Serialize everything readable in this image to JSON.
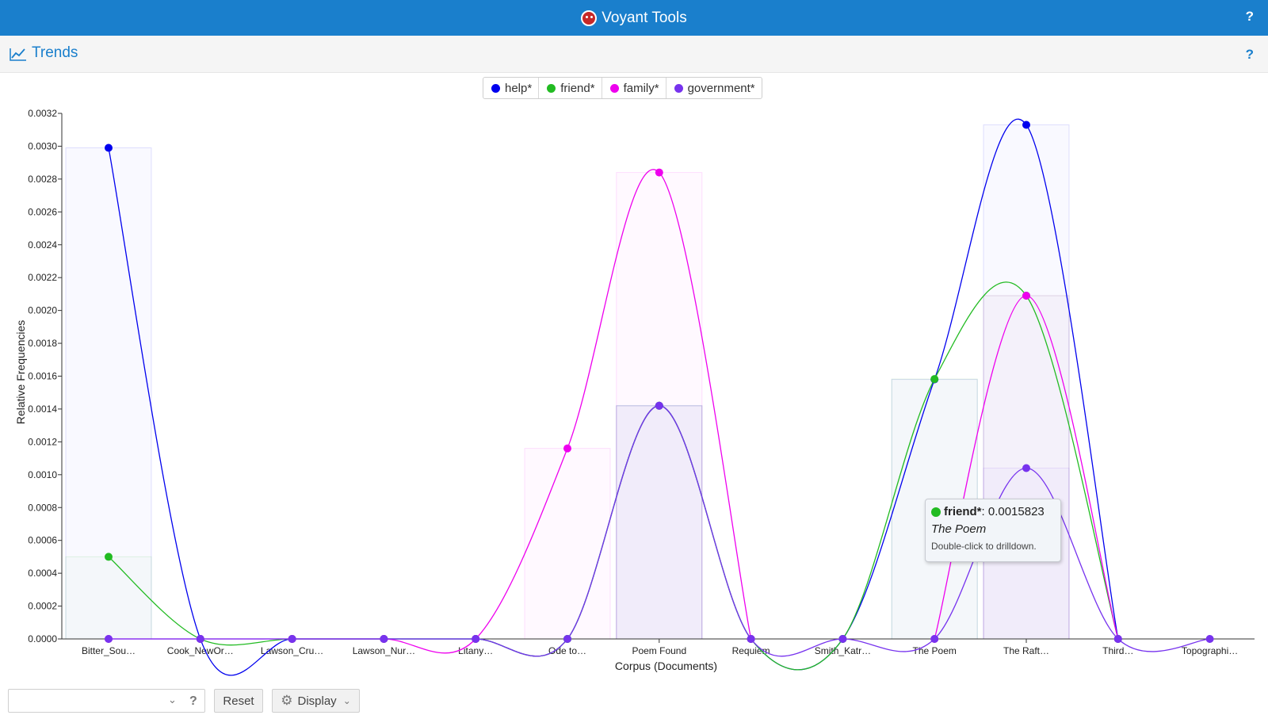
{
  "app": {
    "title": "Voyant Tools",
    "help": "?"
  },
  "panel": {
    "title": "Trends",
    "help": "?"
  },
  "legend": [
    {
      "label": "help*",
      "color": "#0000ee"
    },
    {
      "label": "friend*",
      "color": "#22bb22"
    },
    {
      "label": "family*",
      "color": "#ee00ee"
    },
    {
      "label": "government*",
      "color": "#7733ee"
    }
  ],
  "chart_data": {
    "type": "line",
    "xlabel": "Corpus (Documents)",
    "ylabel": "Relative Frequencies",
    "ylim": [
      0,
      0.0032
    ],
    "yticks": [
      "0.0000",
      "0.0002",
      "0.0004",
      "0.0006",
      "0.0008",
      "0.0010",
      "0.0012",
      "0.0014",
      "0.0016",
      "0.0018",
      "0.0020",
      "0.0022",
      "0.0024",
      "0.0026",
      "0.0028",
      "0.0030",
      "0.0032"
    ],
    "categories": [
      "Bitter_Sou…",
      "Cook_NewOr…",
      "Lawson_Cru…",
      "Lawson_Nur…",
      "Litany…",
      "Ode to…",
      "Poem Found",
      "Requiem",
      "Smith_Katr…",
      "The Poem",
      "The Raft…",
      "Third…",
      "Topographi…"
    ],
    "series": [
      {
        "name": "help*",
        "color": "#0000ee",
        "values": [
          0.00299,
          0,
          0,
          0,
          0,
          0,
          0.00142,
          0,
          0,
          0.00158,
          0.00313,
          0,
          null
        ]
      },
      {
        "name": "friend*",
        "color": "#22bb22",
        "values": [
          0.0005,
          0,
          0,
          0,
          0,
          0,
          0.00142,
          0,
          0,
          0.0015823,
          0.00209,
          0,
          null
        ]
      },
      {
        "name": "family*",
        "color": "#ee00ee",
        "values": [
          0,
          0,
          0,
          0,
          0,
          0.00116,
          0.00284,
          0,
          null,
          0,
          0.00209,
          0,
          null
        ]
      },
      {
        "name": "government*",
        "color": "#7733ee",
        "values": [
          0,
          0,
          0,
          0,
          0,
          0,
          0.00142,
          0,
          0,
          0,
          0.00104,
          0,
          0
        ]
      }
    ],
    "legend_position": "top-center",
    "grid": false
  },
  "tooltip": {
    "term": "friend*",
    "value": ": 0.0015823",
    "document": "The Poem",
    "hint": "Double-click to drilldown.",
    "color": "#22bb22"
  },
  "controls": {
    "search_placeholder": "",
    "help": "?",
    "reset_label": "Reset",
    "display_label": "Display"
  }
}
